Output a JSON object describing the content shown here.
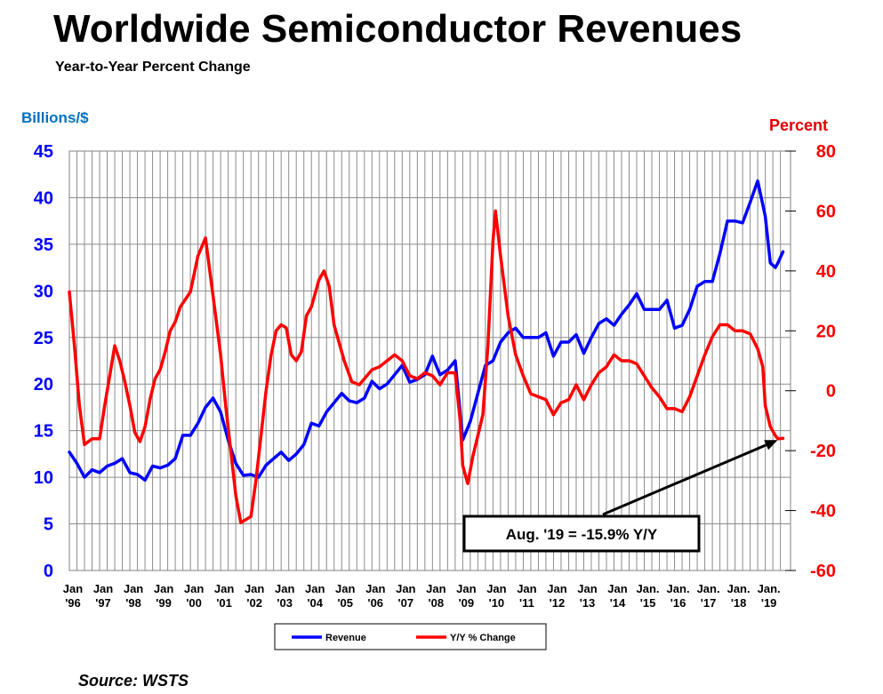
{
  "chart_data": {
    "type": "line",
    "title": "Worldwide Semiconductor Revenues",
    "subtitle": "Year-to-Year Percent Change",
    "ylabel_left": "Billions/$",
    "ylabel_right": "Percent",
    "ylim_left": [
      0,
      45
    ],
    "ylim_right": [
      -60,
      80
    ],
    "yticks_left": [
      "0",
      "5",
      "10",
      "15",
      "20",
      "25",
      "30",
      "35",
      "40",
      "45"
    ],
    "yticks_right": [
      "-60",
      "-40",
      "-20",
      "0",
      "20",
      "40",
      "60",
      "80"
    ],
    "xticks": [
      {
        "top": "Jan",
        "bottom": "'96"
      },
      {
        "top": "Jan",
        "bottom": "'97"
      },
      {
        "top": "Jan",
        "bottom": "'98"
      },
      {
        "top": "Jan",
        "bottom": "'99"
      },
      {
        "top": "Jan",
        "bottom": "'00"
      },
      {
        "top": "Jan",
        "bottom": "'01"
      },
      {
        "top": "Jan",
        "bottom": "'02"
      },
      {
        "top": "Jan",
        "bottom": "'03"
      },
      {
        "top": "Jan",
        "bottom": "'04"
      },
      {
        "top": "Jan",
        "bottom": "'05"
      },
      {
        "top": "Jan",
        "bottom": "'06"
      },
      {
        "top": "Jan",
        "bottom": "'07"
      },
      {
        "top": "Jan",
        "bottom": "'08"
      },
      {
        "top": "Jan",
        "bottom": "'09"
      },
      {
        "top": "Jan",
        "bottom": "'10"
      },
      {
        "top": "Jan",
        "bottom": "'11"
      },
      {
        "top": "Jan",
        "bottom": "'12"
      },
      {
        "top": "Jan",
        "bottom": "'13"
      },
      {
        "top": "Jan",
        "bottom": "'14"
      },
      {
        "top": "Jan.",
        "bottom": "'15"
      },
      {
        "top": "Jan.",
        "bottom": "'16"
      },
      {
        "top": "Jan.",
        "bottom": "'17"
      },
      {
        "top": "Jan.",
        "bottom": "'18"
      },
      {
        "top": "Jan.",
        "bottom": "'19"
      }
    ],
    "grid": true,
    "legend_position": "bottom-center",
    "series": [
      {
        "name": "Revenue",
        "axis": "left",
        "color": "#0000ff",
        "points": [
          [
            "1996-01",
            12.7
          ],
          [
            "1996-04",
            11.5
          ],
          [
            "1996-07",
            10.0
          ],
          [
            "1996-10",
            10.8
          ],
          [
            "1997-01",
            10.5
          ],
          [
            "1997-04",
            11.2
          ],
          [
            "1997-07",
            11.5
          ],
          [
            "1997-10",
            12.0
          ],
          [
            "1998-01",
            10.5
          ],
          [
            "1998-04",
            10.3
          ],
          [
            "1998-07",
            9.7
          ],
          [
            "1998-10",
            11.2
          ],
          [
            "1999-01",
            11.0
          ],
          [
            "1999-04",
            11.3
          ],
          [
            "1999-07",
            12.0
          ],
          [
            "1999-10",
            14.5
          ],
          [
            "2000-01",
            14.5
          ],
          [
            "2000-04",
            15.8
          ],
          [
            "2000-07",
            17.5
          ],
          [
            "2000-10",
            18.5
          ],
          [
            "2001-01",
            17.0
          ],
          [
            "2001-04",
            14.0
          ],
          [
            "2001-07",
            11.5
          ],
          [
            "2001-10",
            10.2
          ],
          [
            "2002-01",
            10.3
          ],
          [
            "2002-04",
            10.0
          ],
          [
            "2002-07",
            11.3
          ],
          [
            "2002-10",
            12.0
          ],
          [
            "2003-01",
            12.7
          ],
          [
            "2003-04",
            11.8
          ],
          [
            "2003-07",
            12.5
          ],
          [
            "2003-10",
            13.5
          ],
          [
            "2004-01",
            15.8
          ],
          [
            "2004-04",
            15.5
          ],
          [
            "2004-07",
            17.0
          ],
          [
            "2004-10",
            18.0
          ],
          [
            "2005-01",
            19.0
          ],
          [
            "2005-04",
            18.2
          ],
          [
            "2005-07",
            18.0
          ],
          [
            "2005-10",
            18.5
          ],
          [
            "2006-01",
            20.3
          ],
          [
            "2006-04",
            19.5
          ],
          [
            "2006-07",
            20.0
          ],
          [
            "2006-10",
            21.0
          ],
          [
            "2007-01",
            22.0
          ],
          [
            "2007-04",
            20.2
          ],
          [
            "2007-07",
            20.5
          ],
          [
            "2007-10",
            21.0
          ],
          [
            "2008-01",
            23.0
          ],
          [
            "2008-04",
            21.0
          ],
          [
            "2008-07",
            21.5
          ],
          [
            "2008-10",
            22.5
          ],
          [
            "2009-01",
            14.0
          ],
          [
            "2009-04",
            16.0
          ],
          [
            "2009-07",
            19.0
          ],
          [
            "2009-10",
            22.0
          ],
          [
            "2010-01",
            22.5
          ],
          [
            "2010-04",
            24.5
          ],
          [
            "2010-07",
            25.5
          ],
          [
            "2010-10",
            26.0
          ],
          [
            "2011-01",
            25.0
          ],
          [
            "2011-04",
            25.0
          ],
          [
            "2011-07",
            25.0
          ],
          [
            "2011-10",
            25.5
          ],
          [
            "2012-01",
            23.0
          ],
          [
            "2012-04",
            24.5
          ],
          [
            "2012-07",
            24.5
          ],
          [
            "2012-10",
            25.3
          ],
          [
            "2013-01",
            23.3
          ],
          [
            "2013-04",
            25.0
          ],
          [
            "2013-07",
            26.5
          ],
          [
            "2013-10",
            27.0
          ],
          [
            "2014-01",
            26.3
          ],
          [
            "2014-04",
            27.5
          ],
          [
            "2014-07",
            28.5
          ],
          [
            "2014-10",
            29.7
          ],
          [
            "2015-01",
            28.0
          ],
          [
            "2015-04",
            28.0
          ],
          [
            "2015-07",
            28.0
          ],
          [
            "2015-10",
            29.0
          ],
          [
            "2016-01",
            26.0
          ],
          [
            "2016-04",
            26.3
          ],
          [
            "2016-07",
            28.0
          ],
          [
            "2016-10",
            30.5
          ],
          [
            "2017-01",
            31.0
          ],
          [
            "2017-04",
            31.0
          ],
          [
            "2017-07",
            34.0
          ],
          [
            "2017-10",
            37.5
          ],
          [
            "2018-01",
            37.5
          ],
          [
            "2018-04",
            37.3
          ],
          [
            "2018-07",
            39.5
          ],
          [
            "2018-10",
            41.8
          ],
          [
            "2019-01",
            38.0
          ],
          [
            "2019-03",
            33.0
          ],
          [
            "2019-05",
            32.5
          ],
          [
            "2019-06",
            33.0
          ],
          [
            "2019-08",
            34.2
          ]
        ]
      },
      {
        "name": "Y/Y % Change",
        "axis": "right",
        "color": "#ff0000",
        "points": [
          [
            "1996-01",
            33.0
          ],
          [
            "1996-03",
            15.0
          ],
          [
            "1996-05",
            -5.0
          ],
          [
            "1996-07",
            -18.0
          ],
          [
            "1996-10",
            -16.0
          ],
          [
            "1997-01",
            -16.0
          ],
          [
            "1997-03",
            -5.0
          ],
          [
            "1997-05",
            5.0
          ],
          [
            "1997-07",
            15.0
          ],
          [
            "1997-09",
            10.0
          ],
          [
            "1997-11",
            3.0
          ],
          [
            "1998-01",
            -5.0
          ],
          [
            "1998-03",
            -14.0
          ],
          [
            "1998-05",
            -17.0
          ],
          [
            "1998-07",
            -12.0
          ],
          [
            "1998-09",
            -3.0
          ],
          [
            "1998-11",
            4.0
          ],
          [
            "1999-01",
            7.0
          ],
          [
            "1999-03",
            13.0
          ],
          [
            "1999-05",
            20.0
          ],
          [
            "1999-07",
            23.0
          ],
          [
            "1999-09",
            28.0
          ],
          [
            "2000-01",
            33.0
          ],
          [
            "2000-04",
            45.0
          ],
          [
            "2000-07",
            51.0
          ],
          [
            "2000-09",
            38.0
          ],
          [
            "2000-11",
            25.0
          ],
          [
            "2001-01",
            12.0
          ],
          [
            "2001-03",
            -5.0
          ],
          [
            "2001-05",
            -20.0
          ],
          [
            "2001-07",
            -35.0
          ],
          [
            "2001-09",
            -44.0
          ],
          [
            "2001-11",
            -43.0
          ],
          [
            "2002-01",
            -42.0
          ],
          [
            "2002-03",
            -30.0
          ],
          [
            "2002-05",
            -15.0
          ],
          [
            "2002-07",
            0.0
          ],
          [
            "2002-09",
            12.0
          ],
          [
            "2002-11",
            20.0
          ],
          [
            "2003-01",
            22.0
          ],
          [
            "2003-03",
            21.0
          ],
          [
            "2003-05",
            12.0
          ],
          [
            "2003-07",
            10.0
          ],
          [
            "2003-09",
            13.0
          ],
          [
            "2003-11",
            25.0
          ],
          [
            "2004-01",
            28.0
          ],
          [
            "2004-04",
            37.0
          ],
          [
            "2004-06",
            40.0
          ],
          [
            "2004-08",
            35.0
          ],
          [
            "2004-10",
            22.0
          ],
          [
            "2004-12",
            16.0
          ],
          [
            "2005-02",
            10.0
          ],
          [
            "2005-05",
            3.0
          ],
          [
            "2005-08",
            2.0
          ],
          [
            "2005-11",
            5.0
          ],
          [
            "2006-01",
            7.0
          ],
          [
            "2006-04",
            8.0
          ],
          [
            "2006-07",
            10.0
          ],
          [
            "2006-10",
            12.0
          ],
          [
            "2007-01",
            10.0
          ],
          [
            "2007-04",
            5.0
          ],
          [
            "2007-07",
            4.0
          ],
          [
            "2007-10",
            6.0
          ],
          [
            "2008-01",
            5.0
          ],
          [
            "2008-04",
            2.0
          ],
          [
            "2008-07",
            6.0
          ],
          [
            "2008-10",
            6.0
          ],
          [
            "2008-12",
            -10.0
          ],
          [
            "2009-01",
            -25.0
          ],
          [
            "2009-03",
            -31.0
          ],
          [
            "2009-05",
            -22.0
          ],
          [
            "2009-07",
            -15.0
          ],
          [
            "2009-09",
            -8.0
          ],
          [
            "2009-11",
            15.0
          ],
          [
            "2010-01",
            50.0
          ],
          [
            "2010-02",
            60.0
          ],
          [
            "2010-04",
            45.0
          ],
          [
            "2010-07",
            25.0
          ],
          [
            "2010-10",
            12.0
          ],
          [
            "2011-01",
            5.0
          ],
          [
            "2011-04",
            -1.0
          ],
          [
            "2011-07",
            -2.0
          ],
          [
            "2011-10",
            -3.0
          ],
          [
            "2012-01",
            -8.0
          ],
          [
            "2012-04",
            -4.0
          ],
          [
            "2012-07",
            -3.0
          ],
          [
            "2012-10",
            2.0
          ],
          [
            "2013-01",
            -3.0
          ],
          [
            "2013-04",
            2.0
          ],
          [
            "2013-07",
            6.0
          ],
          [
            "2013-10",
            8.0
          ],
          [
            "2014-01",
            12.0
          ],
          [
            "2014-04",
            10.0
          ],
          [
            "2014-07",
            10.0
          ],
          [
            "2014-10",
            9.0
          ],
          [
            "2015-01",
            5.0
          ],
          [
            "2015-04",
            1.0
          ],
          [
            "2015-07",
            -2.0
          ],
          [
            "2015-10",
            -6.0
          ],
          [
            "2016-01",
            -6.0
          ],
          [
            "2016-04",
            -7.0
          ],
          [
            "2016-07",
            -2.0
          ],
          [
            "2016-10",
            5.0
          ],
          [
            "2017-01",
            12.0
          ],
          [
            "2017-04",
            18.0
          ],
          [
            "2017-07",
            22.0
          ],
          [
            "2017-10",
            22.0
          ],
          [
            "2018-01",
            20.0
          ],
          [
            "2018-04",
            20.0
          ],
          [
            "2018-07",
            19.0
          ],
          [
            "2018-10",
            14.0
          ],
          [
            "2018-12",
            8.0
          ],
          [
            "2019-01",
            -5.0
          ],
          [
            "2019-03",
            -12.0
          ],
          [
            "2019-05",
            -15.0
          ],
          [
            "2019-06",
            -16.0
          ],
          [
            "2019-08",
            -15.9
          ]
        ]
      }
    ],
    "annotation": {
      "text": "Aug. '19 = -15.9% Y/Y",
      "point": [
        "2019-08",
        -15.9
      ],
      "axis": "right"
    }
  },
  "source": "Source: WSTS"
}
